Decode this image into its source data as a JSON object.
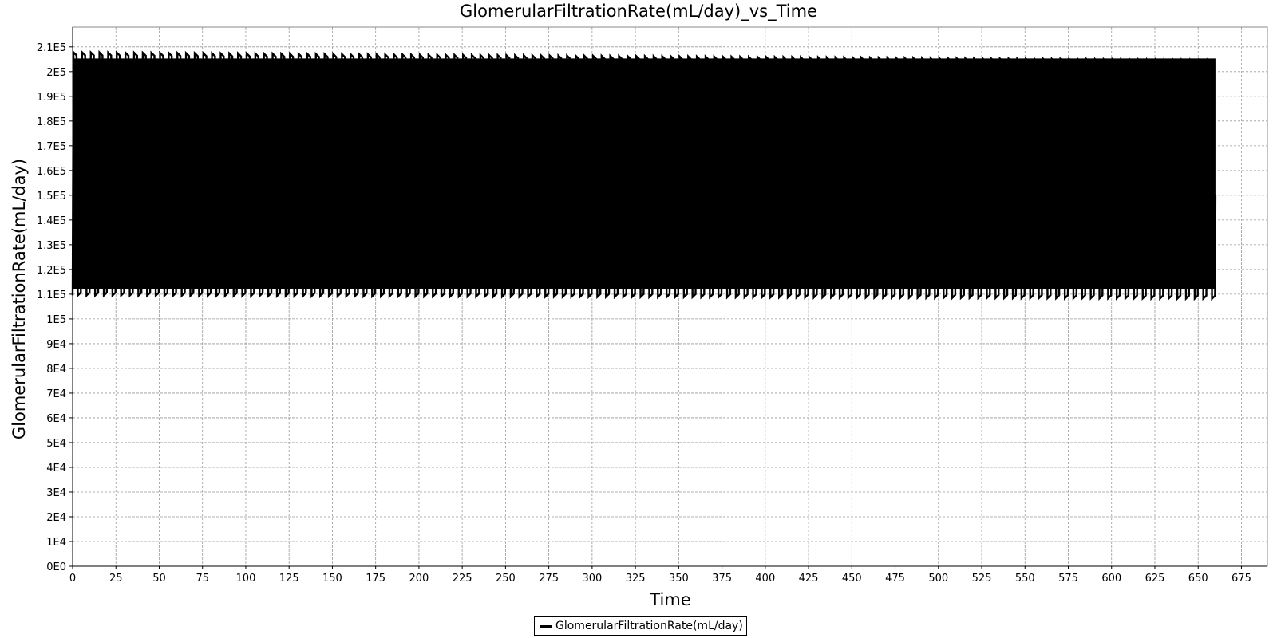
{
  "chart_data": {
    "type": "line",
    "title": "GlomerularFiltrationRate(mL/day)_vs_Time",
    "xlabel": "Time",
    "ylabel": "GlomerularFiltrationRate(mL/day)",
    "xlim": [
      0,
      690
    ],
    "ylim": [
      0,
      218000
    ],
    "x_ticks": [
      0,
      25,
      50,
      75,
      100,
      125,
      150,
      175,
      200,
      225,
      250,
      275,
      300,
      325,
      350,
      375,
      400,
      425,
      450,
      475,
      500,
      525,
      550,
      575,
      600,
      625,
      650,
      675
    ],
    "x_tick_labels": [
      "0",
      "25",
      "50",
      "75",
      "100",
      "125",
      "150",
      "175",
      "200",
      "225",
      "250",
      "275",
      "300",
      "325",
      "350",
      "375",
      "400",
      "425",
      "450",
      "475",
      "500",
      "525",
      "550",
      "575",
      "600",
      "625",
      "650",
      "675"
    ],
    "y_ticks": [
      0,
      10000,
      20000,
      30000,
      40000,
      50000,
      60000,
      70000,
      80000,
      90000,
      100000,
      110000,
      120000,
      130000,
      140000,
      150000,
      160000,
      170000,
      180000,
      190000,
      200000,
      210000
    ],
    "y_tick_labels": [
      "0E0",
      "1E4",
      "2E4",
      "3E4",
      "4E4",
      "5E4",
      "6E4",
      "7E4",
      "8E4",
      "9E4",
      "1E5",
      "1.1E5",
      "1.2E5",
      "1.3E5",
      "1.4E5",
      "1.5E5",
      "1.6E5",
      "1.7E5",
      "1.8E5",
      "1.9E5",
      "2E5",
      "2.1E5"
    ],
    "grid": true,
    "legend_position": "bottom-center",
    "series": [
      {
        "name": "GlomerularFiltrationRate(mL/day)",
        "color": "#000000",
        "x_start": 0,
        "x_end": 660,
        "oscillation_period": 5,
        "max_values": [
          207800,
          204700
        ],
        "min_values": [
          109500,
          108200
        ],
        "end_value": 150000
      }
    ]
  },
  "legend": {
    "label": "GlomerularFiltrationRate(mL/day)"
  }
}
